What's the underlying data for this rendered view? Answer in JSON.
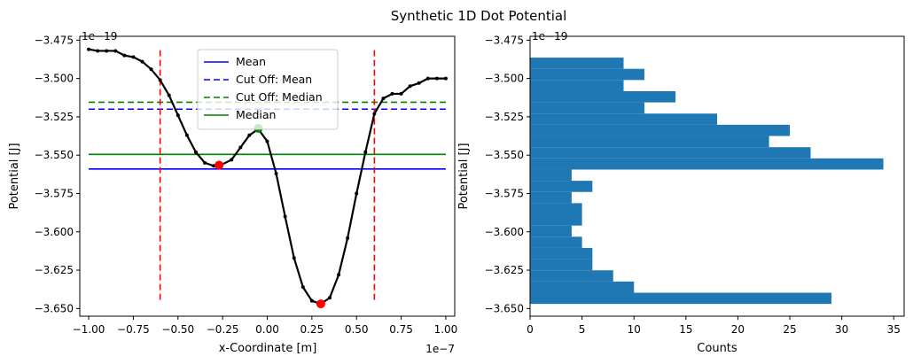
{
  "figure_title": "Synthetic 1D Dot Potential",
  "chart_data": [
    {
      "type": "line",
      "xlabel": "x-Coordinate [m]",
      "ylabel": "Potential [J]",
      "x_offset_label": "1e−7",
      "y_offset_label": "1e−19",
      "xlim": [
        -1.05,
        1.05
      ],
      "ylim": [
        -3.655,
        -3.4725
      ],
      "xticks": [
        -1.0,
        -0.75,
        -0.5,
        -0.25,
        0.0,
        0.25,
        0.5,
        0.75,
        1.0
      ],
      "xtick_labels": [
        "−1.00",
        "−0.75",
        "−0.50",
        "−0.25",
        "0.00",
        "0.25",
        "0.50",
        "0.75",
        "1.00"
      ],
      "yticks": [
        -3.475,
        -3.5,
        -3.525,
        -3.55,
        -3.575,
        -3.6,
        -3.625,
        -3.65
      ],
      "ytick_labels": [
        "−3.475",
        "−3.500",
        "−3.525",
        "−3.550",
        "−3.575",
        "−3.600",
        "−3.625",
        "−3.650"
      ],
      "grid": false,
      "legend_position": "upper center",
      "curve": {
        "x": [
          -1.0,
          -0.95,
          -0.9,
          -0.85,
          -0.8,
          -0.75,
          -0.7,
          -0.65,
          -0.6,
          -0.55,
          -0.5,
          -0.45,
          -0.4,
          -0.35,
          -0.3,
          -0.27,
          -0.2,
          -0.15,
          -0.1,
          -0.05,
          0.0,
          0.05,
          0.1,
          0.15,
          0.2,
          0.25,
          0.3,
          0.35,
          0.4,
          0.45,
          0.5,
          0.55,
          0.6,
          0.65,
          0.7,
          0.75,
          0.8,
          0.85,
          0.9,
          0.95,
          1.0
        ],
        "y": [
          -3.481,
          -3.482,
          -3.482,
          -3.482,
          -3.485,
          -3.486,
          -3.489,
          -3.494,
          -3.501,
          -3.511,
          -3.524,
          -3.537,
          -3.548,
          -3.555,
          -3.557,
          -3.557,
          -3.553,
          -3.545,
          -3.537,
          -3.533,
          -3.541,
          -3.562,
          -3.59,
          -3.617,
          -3.636,
          -3.645,
          -3.647,
          -3.643,
          -3.628,
          -3.604,
          -3.575,
          -3.548,
          -3.523,
          -3.513,
          -3.51,
          -3.51,
          -3.505,
          -3.503,
          -3.5,
          -3.5,
          -3.5
        ]
      },
      "hlines": [
        {
          "label": "Mean",
          "y": -3.559,
          "color": "#0000ff",
          "style": "solid"
        },
        {
          "label": "Cut Off: Mean",
          "y": -3.52,
          "color": "#0000ff",
          "style": "dashed"
        },
        {
          "label": "Cut Off: Median",
          "y": -3.5155,
          "color": "#008000",
          "style": "dashed"
        },
        {
          "label": "Median",
          "y": -3.5495,
          "color": "#008000",
          "style": "solid"
        }
      ],
      "vlines": [
        {
          "x": -0.6,
          "y_range": [
            -3.4815,
            -3.6465
          ],
          "color": "#ff0000",
          "style": "dashed"
        },
        {
          "x": 0.6,
          "y_range": [
            -3.4815,
            -3.6465
          ],
          "color": "#ff0000",
          "style": "dashed"
        }
      ],
      "markers": [
        {
          "x": -0.27,
          "y": -3.5565,
          "color": "#ff0000"
        },
        {
          "x": 0.3,
          "y": -3.647,
          "color": "#ff0000"
        },
        {
          "x": -0.05,
          "y": -3.5325,
          "color": "#008000"
        }
      ]
    },
    {
      "type": "bar",
      "orientation": "horizontal",
      "xlabel": "Counts",
      "ylabel": "Potential [J]",
      "y_offset_label": "1e−19",
      "xlim": [
        0,
        36
      ],
      "ylim": [
        -3.655,
        -3.4725
      ],
      "xticks": [
        0,
        5,
        10,
        15,
        20,
        25,
        30,
        35
      ],
      "xtick_labels": [
        "0",
        "5",
        "10",
        "15",
        "20",
        "25",
        "30",
        "35"
      ],
      "yticks": [
        -3.475,
        -3.5,
        -3.525,
        -3.55,
        -3.575,
        -3.6,
        -3.625,
        -3.65
      ],
      "ytick_labels": [
        "−3.475",
        "−3.500",
        "−3.525",
        "−3.550",
        "−3.575",
        "−3.600",
        "−3.625",
        "−3.650"
      ],
      "grid": false,
      "bar_color": "#1f77b4",
      "bin_edges": [
        -3.647,
        -3.6397,
        -3.6324,
        -3.6251,
        -3.6178,
        -3.6105,
        -3.6032,
        -3.5959,
        -3.5886,
        -3.5813,
        -3.574,
        -3.5667,
        -3.5594,
        -3.5521,
        -3.5448,
        -3.5375,
        -3.5302,
        -3.5229,
        -3.5156,
        -3.5083,
        -3.501,
        -3.4937,
        -3.4864,
        -3.4791,
        -3.4718
      ],
      "counts": [
        29,
        10,
        8,
        6,
        6,
        5,
        4,
        5,
        5,
        4,
        6,
        4,
        34,
        27,
        23,
        25,
        18,
        11,
        14,
        9,
        11,
        9,
        0,
        0
      ]
    }
  ]
}
